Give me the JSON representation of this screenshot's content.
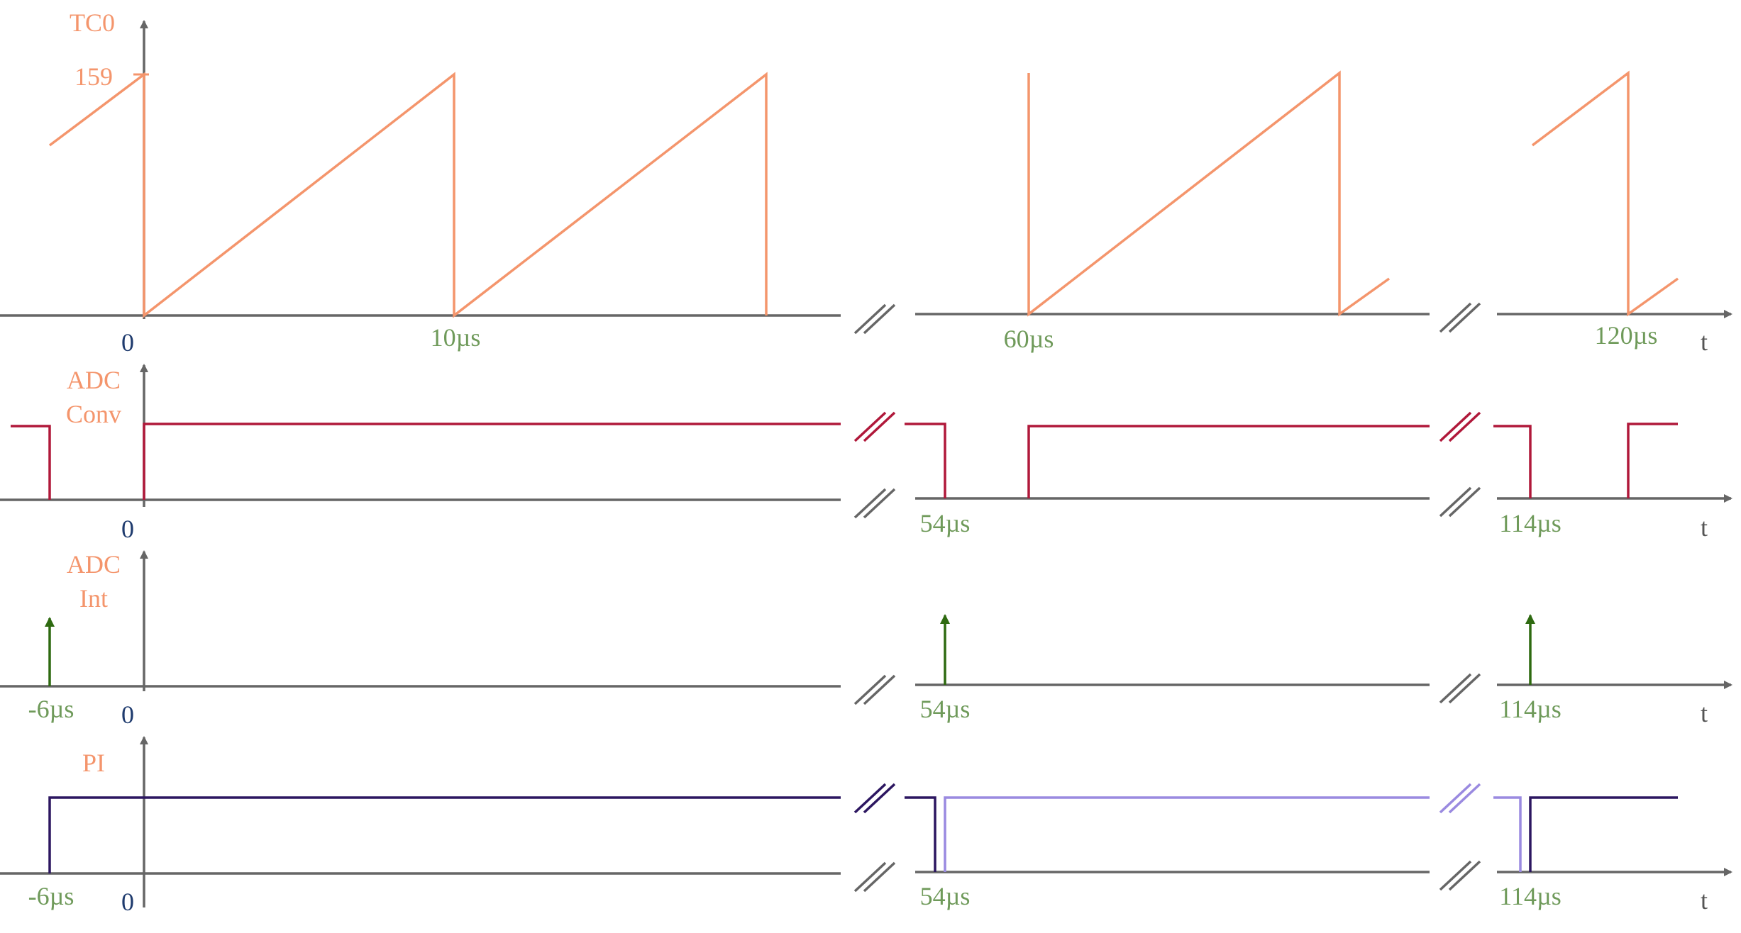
{
  "colors": {
    "axis": "#666666",
    "tc0": "#f4956c",
    "adc_conv": "#b0183a",
    "adc_int": "#2e6a10",
    "pi_dark": "#2c1660",
    "pi_light": "#9a8ae0",
    "label_name": "#f4956c",
    "label_zero": "#1f3b6e",
    "label_time": "#6f9a5a"
  },
  "rows": [
    {
      "id": "tc0",
      "name_lines": [
        "TC0"
      ],
      "max_label": "159",
      "zero_label": "0",
      "time_labels": [
        "10µs",
        "60µs",
        "120µs"
      ],
      "axis_end_label": "t"
    },
    {
      "id": "adc-conv",
      "name_lines": [
        "ADC",
        "Conv"
      ],
      "zero_label": "0",
      "time_labels": [
        "54µs",
        "114µs"
      ],
      "axis_end_label": "t"
    },
    {
      "id": "adc-int",
      "name_lines": [
        "ADC",
        "Int"
      ],
      "zero_label": "0",
      "time_labels": [
        "-6µs",
        "54µs",
        "114µs"
      ],
      "axis_end_label": "t"
    },
    {
      "id": "pi",
      "name_lines": [
        "PI"
      ],
      "zero_label": "0",
      "time_labels": [
        "-6µs",
        "54µs",
        "114µs"
      ],
      "axis_end_label": "t"
    }
  ]
}
